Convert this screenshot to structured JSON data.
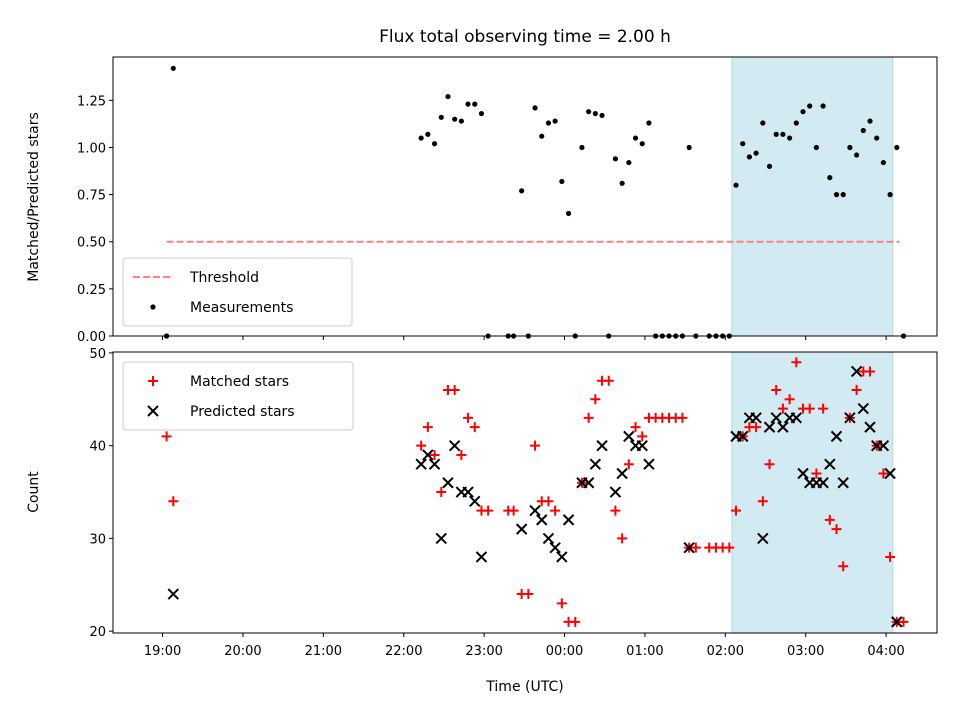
{
  "figure": {
    "title": "Flux total observing time = 2.00 h",
    "x_label": "Time (UTC)",
    "x_ticks": [
      "19:00",
      "20:00",
      "21:00",
      "22:00",
      "23:00",
      "00:00",
      "01:00",
      "02:00",
      "03:00",
      "04:00"
    ],
    "shaded_region": {
      "start": "02:05",
      "end": "04:05",
      "color": "#add8e6"
    }
  },
  "chart_data": [
    {
      "type": "scatter",
      "ylabel": "Matched/Predicted stars",
      "ylim": [
        0,
        1.48
      ],
      "yticks": [
        "0.00",
        "0.25",
        "0.50",
        "0.75",
        "1.00",
        "1.25"
      ],
      "grid": false,
      "legend_position": "lower-left",
      "threshold": {
        "name": "Threshold",
        "value": 0.5,
        "color": "#ff8080",
        "style": "dashed",
        "from": "19:03",
        "to": "04:10"
      },
      "series": [
        {
          "name": "Measurements",
          "color": "#000000",
          "marker": "dot",
          "points": [
            [
              "19:03",
              0
            ],
            [
              "19:08",
              1.42
            ],
            [
              "22:13",
              1.05
            ],
            [
              "22:18",
              1.07
            ],
            [
              "22:23",
              1.02
            ],
            [
              "22:28",
              1.16
            ],
            [
              "22:33",
              1.27
            ],
            [
              "22:38",
              1.15
            ],
            [
              "22:43",
              1.14
            ],
            [
              "22:48",
              1.23
            ],
            [
              "22:53",
              1.23
            ],
            [
              "22:58",
              1.18
            ],
            [
              "23:03",
              0
            ],
            [
              "23:18",
              0
            ],
            [
              "23:22",
              0
            ],
            [
              "23:28",
              0.77
            ],
            [
              "23:33",
              0
            ],
            [
              "23:38",
              1.21
            ],
            [
              "23:43",
              1.06
            ],
            [
              "23:48",
              1.13
            ],
            [
              "23:53",
              1.14
            ],
            [
              "23:58",
              0.82
            ],
            [
              "00:03",
              0.65
            ],
            [
              "00:08",
              0
            ],
            [
              "00:13",
              1.0
            ],
            [
              "00:18",
              1.19
            ],
            [
              "00:23",
              1.18
            ],
            [
              "00:28",
              1.17
            ],
            [
              "00:33",
              0
            ],
            [
              "00:38",
              0.94
            ],
            [
              "00:43",
              0.81
            ],
            [
              "00:48",
              0.92
            ],
            [
              "00:53",
              1.05
            ],
            [
              "00:58",
              1.02
            ],
            [
              "01:03",
              1.13
            ],
            [
              "01:08",
              0
            ],
            [
              "01:13",
              0
            ],
            [
              "01:18",
              0
            ],
            [
              "01:23",
              0
            ],
            [
              "01:28",
              0
            ],
            [
              "01:33",
              1.0
            ],
            [
              "01:38",
              0
            ],
            [
              "01:48",
              0
            ],
            [
              "01:53",
              0
            ],
            [
              "01:58",
              0
            ],
            [
              "02:03",
              0
            ],
            [
              "02:08",
              0.8
            ],
            [
              "02:13",
              1.02
            ],
            [
              "02:18",
              0.95
            ],
            [
              "02:23",
              0.97
            ],
            [
              "02:28",
              1.13
            ],
            [
              "02:33",
              0.9
            ],
            [
              "02:38",
              1.07
            ],
            [
              "02:43",
              1.07
            ],
            [
              "02:48",
              1.05
            ],
            [
              "02:53",
              1.13
            ],
            [
              "02:58",
              1.19
            ],
            [
              "03:03",
              1.22
            ],
            [
              "03:08",
              1.0
            ],
            [
              "03:13",
              1.22
            ],
            [
              "03:18",
              0.84
            ],
            [
              "03:23",
              0.75
            ],
            [
              "03:28",
              0.75
            ],
            [
              "03:33",
              1.0
            ],
            [
              "03:38",
              0.96
            ],
            [
              "03:43",
              1.09
            ],
            [
              "03:48",
              1.14
            ],
            [
              "03:53",
              1.05
            ],
            [
              "03:58",
              0.92
            ],
            [
              "04:03",
              0.75
            ],
            [
              "04:08",
              1.0
            ],
            [
              "04:13",
              0
            ]
          ]
        }
      ]
    },
    {
      "type": "scatter",
      "ylabel": "Count",
      "ylim": [
        19.8,
        50.1
      ],
      "yticks": [
        "20",
        "30",
        "40",
        "50"
      ],
      "grid": false,
      "legend_position": "top-left",
      "series": [
        {
          "name": "Matched stars",
          "color": "#ff0000",
          "marker": "plus",
          "points": [
            [
              "19:03",
              41
            ],
            [
              "19:08",
              34
            ],
            [
              "22:13",
              40
            ],
            [
              "22:18",
              42
            ],
            [
              "22:23",
              39
            ],
            [
              "22:28",
              35
            ],
            [
              "22:33",
              46
            ],
            [
              "22:38",
              46
            ],
            [
              "22:43",
              39
            ],
            [
              "22:48",
              43
            ],
            [
              "22:53",
              42
            ],
            [
              "22:58",
              33
            ],
            [
              "23:03",
              33
            ],
            [
              "23:18",
              33
            ],
            [
              "23:22",
              33
            ],
            [
              "23:28",
              24
            ],
            [
              "23:33",
              24
            ],
            [
              "23:38",
              40
            ],
            [
              "23:43",
              34
            ],
            [
              "23:48",
              34
            ],
            [
              "23:53",
              33
            ],
            [
              "23:58",
              23
            ],
            [
              "00:03",
              21
            ],
            [
              "00:08",
              21
            ],
            [
              "00:13",
              36
            ],
            [
              "00:18",
              43
            ],
            [
              "00:23",
              45
            ],
            [
              "00:28",
              47
            ],
            [
              "00:33",
              47
            ],
            [
              "00:38",
              33
            ],
            [
              "00:43",
              30
            ],
            [
              "00:48",
              38
            ],
            [
              "00:53",
              42
            ],
            [
              "00:58",
              41
            ],
            [
              "01:03",
              43
            ],
            [
              "01:08",
              43
            ],
            [
              "01:13",
              43
            ],
            [
              "01:18",
              43
            ],
            [
              "01:23",
              43
            ],
            [
              "01:28",
              43
            ],
            [
              "01:33",
              29
            ],
            [
              "01:38",
              29
            ],
            [
              "01:48",
              29
            ],
            [
              "01:53",
              29
            ],
            [
              "01:58",
              29
            ],
            [
              "02:03",
              29
            ],
            [
              "02:08",
              33
            ],
            [
              "02:13",
              41
            ],
            [
              "02:18",
              42
            ],
            [
              "02:23",
              42
            ],
            [
              "02:28",
              34
            ],
            [
              "02:33",
              38
            ],
            [
              "02:38",
              46
            ],
            [
              "02:43",
              44
            ],
            [
              "02:48",
              45
            ],
            [
              "02:53",
              49
            ],
            [
              "02:58",
              44
            ],
            [
              "03:03",
              44
            ],
            [
              "03:08",
              37
            ],
            [
              "03:13",
              44
            ],
            [
              "03:18",
              32
            ],
            [
              "03:23",
              31
            ],
            [
              "03:28",
              27
            ],
            [
              "03:33",
              43
            ],
            [
              "03:38",
              46
            ],
            [
              "03:43",
              48
            ],
            [
              "03:48",
              48
            ],
            [
              "03:53",
              40
            ],
            [
              "03:58",
              37
            ],
            [
              "04:03",
              28
            ],
            [
              "04:08",
              21
            ],
            [
              "04:13",
              21
            ]
          ]
        },
        {
          "name": "Predicted stars",
          "color": "#000000",
          "marker": "x",
          "points": [
            [
              "19:08",
              24
            ],
            [
              "22:13",
              38
            ],
            [
              "22:18",
              39
            ],
            [
              "22:23",
              38
            ],
            [
              "22:28",
              30
            ],
            [
              "22:33",
              36
            ],
            [
              "22:38",
              40
            ],
            [
              "22:43",
              35
            ],
            [
              "22:48",
              35
            ],
            [
              "22:53",
              34
            ],
            [
              "22:58",
              28
            ],
            [
              "23:28",
              31
            ],
            [
              "23:38",
              33
            ],
            [
              "23:43",
              32
            ],
            [
              "23:48",
              30
            ],
            [
              "23:53",
              29
            ],
            [
              "23:58",
              28
            ],
            [
              "00:03",
              32
            ],
            [
              "00:13",
              36
            ],
            [
              "00:18",
              36
            ],
            [
              "00:23",
              38
            ],
            [
              "00:28",
              40
            ],
            [
              "00:38",
              35
            ],
            [
              "00:43",
              37
            ],
            [
              "00:48",
              41
            ],
            [
              "00:53",
              40
            ],
            [
              "00:58",
              40
            ],
            [
              "01:03",
              38
            ],
            [
              "01:33",
              29
            ],
            [
              "02:08",
              41
            ],
            [
              "02:13",
              41
            ],
            [
              "02:18",
              43
            ],
            [
              "02:23",
              43
            ],
            [
              "02:28",
              30
            ],
            [
              "02:33",
              42
            ],
            [
              "02:38",
              43
            ],
            [
              "02:43",
              42
            ],
            [
              "02:48",
              43
            ],
            [
              "02:53",
              43
            ],
            [
              "02:58",
              37
            ],
            [
              "03:03",
              36
            ],
            [
              "03:08",
              36
            ],
            [
              "03:13",
              36
            ],
            [
              "03:18",
              38
            ],
            [
              "03:23",
              41
            ],
            [
              "03:28",
              36
            ],
            [
              "03:33",
              43
            ],
            [
              "03:38",
              48
            ],
            [
              "03:43",
              44
            ],
            [
              "03:48",
              42
            ],
            [
              "03:53",
              40
            ],
            [
              "03:58",
              40
            ],
            [
              "04:03",
              37
            ],
            [
              "04:08",
              21
            ]
          ]
        }
      ]
    }
  ]
}
